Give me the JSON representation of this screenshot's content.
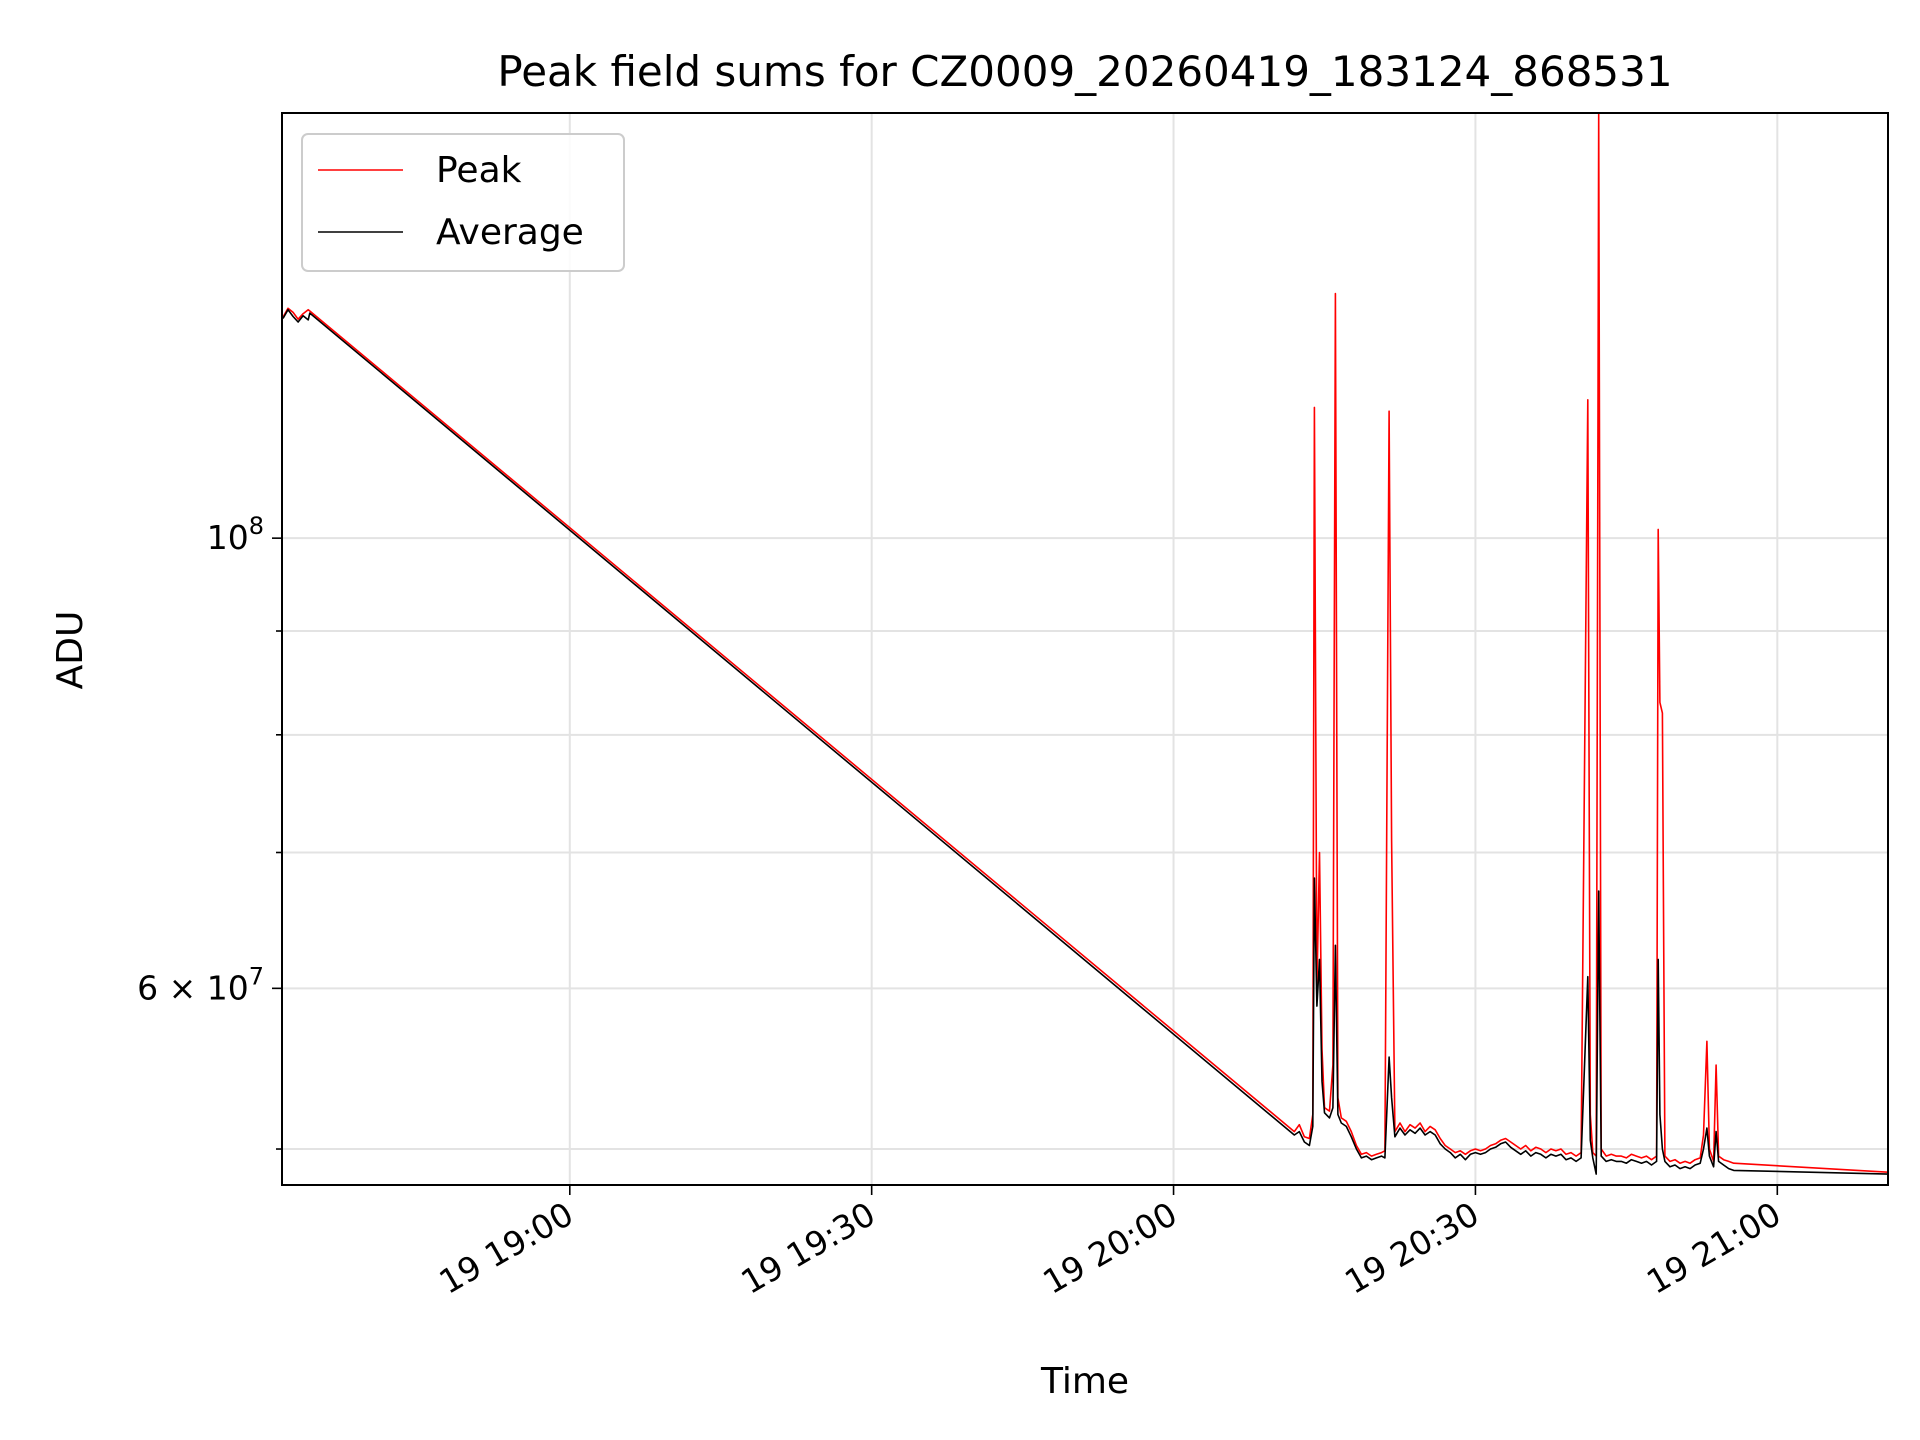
{
  "chart_data": {
    "type": "line",
    "title": "Peak field sums for CZ0009_20260419_183124_868531",
    "xlabel": "Time",
    "ylabel": "ADU",
    "xscale": "time",
    "yscale": "log",
    "grid": true,
    "legend_placement": "top-left",
    "xlim": [
      "2026-04-19 18:31:24",
      "2026-04-19 21:11:00"
    ],
    "ylim": [
      48000000,
      162000000
    ],
    "x_ticks": [
      {
        "label": "19 19:00",
        "value": "2026-04-19 19:00:00"
      },
      {
        "label": "19 19:30",
        "value": "2026-04-19 19:30:00"
      },
      {
        "label": "19 20:00",
        "value": "2026-04-19 20:00:00"
      },
      {
        "label": "19 20:30",
        "value": "2026-04-19 20:30:00"
      },
      {
        "label": "19 21:00",
        "value": "2026-04-19 21:00:00"
      }
    ],
    "y_ticks": [
      {
        "value": 100000000,
        "label_base": "10",
        "label_exp": "8",
        "label_prefix": ""
      },
      {
        "value": 60000000,
        "label_base": "10",
        "label_exp": "7",
        "label_prefix": "6 × "
      }
    ],
    "y_minor_ticks": [
      50000000,
      70000000,
      80000000,
      90000000
    ],
    "series": [
      {
        "name": "Peak",
        "color": "#ff0000",
        "points": [
          [
            "2026-04-19 18:31:30",
            128500000
          ],
          [
            "2026-04-19 18:32:00",
            129800000
          ],
          [
            "2026-04-19 18:32:30",
            129200000
          ],
          [
            "2026-04-19 18:33:00",
            128200000
          ],
          [
            "2026-04-19 18:33:30",
            129000000
          ],
          [
            "2026-04-19 18:34:00",
            129600000
          ],
          [
            "2026-04-19 18:34:10",
            129400000
          ],
          [
            "2026-04-19 20:12:00",
            51000000
          ],
          [
            "2026-04-19 20:12:30",
            51400000
          ],
          [
            "2026-04-19 20:13:00",
            50700000
          ],
          [
            "2026-04-19 20:13:30",
            50600000
          ],
          [
            "2026-04-19 20:13:50",
            52000000
          ],
          [
            "2026-04-19 20:14:00",
            116000000
          ],
          [
            "2026-04-19 20:14:15",
            60000000
          ],
          [
            "2026-04-19 20:14:30",
            70000000
          ],
          [
            "2026-04-19 20:14:45",
            56000000
          ],
          [
            "2026-04-19 20:15:00",
            52400000
          ],
          [
            "2026-04-19 20:15:30",
            52200000
          ],
          [
            "2026-04-19 20:15:50",
            55000000
          ],
          [
            "2026-04-19 20:16:05",
            132000000
          ],
          [
            "2026-04-19 20:16:20",
            53000000
          ],
          [
            "2026-04-19 20:16:40",
            51800000
          ],
          [
            "2026-04-19 20:17:10",
            51600000
          ],
          [
            "2026-04-19 20:17:40",
            51000000
          ],
          [
            "2026-04-19 20:18:10",
            50200000
          ],
          [
            "2026-04-19 20:18:40",
            49700000
          ],
          [
            "2026-04-19 20:19:10",
            49800000
          ],
          [
            "2026-04-19 20:19:40",
            49600000
          ],
          [
            "2026-04-19 20:20:10",
            49700000
          ],
          [
            "2026-04-19 20:20:40",
            49800000
          ],
          [
            "2026-04-19 20:21:00",
            49900000
          ],
          [
            "2026-04-19 20:21:25",
            115500000
          ],
          [
            "2026-04-19 20:21:40",
            71000000
          ],
          [
            "2026-04-19 20:22:00",
            51000000
          ],
          [
            "2026-04-19 20:22:30",
            51500000
          ],
          [
            "2026-04-19 20:23:00",
            51000000
          ],
          [
            "2026-04-19 20:23:30",
            51400000
          ],
          [
            "2026-04-19 20:24:00",
            51200000
          ],
          [
            "2026-04-19 20:24:30",
            51500000
          ],
          [
            "2026-04-19 20:25:00",
            51000000
          ],
          [
            "2026-04-19 20:25:30",
            51300000
          ],
          [
            "2026-04-19 20:26:00",
            51100000
          ],
          [
            "2026-04-19 20:26:30",
            50600000
          ],
          [
            "2026-04-19 20:27:00",
            50200000
          ],
          [
            "2026-04-19 20:27:30",
            50000000
          ],
          [
            "2026-04-19 20:28:00",
            49800000
          ],
          [
            "2026-04-19 20:28:30",
            49900000
          ],
          [
            "2026-04-19 20:29:00",
            49700000
          ],
          [
            "2026-04-19 20:29:30",
            49900000
          ],
          [
            "2026-04-19 20:30:00",
            50000000
          ],
          [
            "2026-04-19 20:30:30",
            49900000
          ],
          [
            "2026-04-19 20:31:00",
            50000000
          ],
          [
            "2026-04-19 20:31:30",
            50200000
          ],
          [
            "2026-04-19 20:32:00",
            50300000
          ],
          [
            "2026-04-19 20:32:30",
            50500000
          ],
          [
            "2026-04-19 20:33:00",
            50600000
          ],
          [
            "2026-04-19 20:33:30",
            50400000
          ],
          [
            "2026-04-19 20:34:00",
            50200000
          ],
          [
            "2026-04-19 20:34:30",
            50000000
          ],
          [
            "2026-04-19 20:35:00",
            50200000
          ],
          [
            "2026-04-19 20:35:30",
            49900000
          ],
          [
            "2026-04-19 20:36:00",
            50100000
          ],
          [
            "2026-04-19 20:36:30",
            50000000
          ],
          [
            "2026-04-19 20:37:00",
            49800000
          ],
          [
            "2026-04-19 20:37:30",
            50000000
          ],
          [
            "2026-04-19 20:38:00",
            49900000
          ],
          [
            "2026-04-19 20:38:30",
            50000000
          ],
          [
            "2026-04-19 20:39:00",
            49700000
          ],
          [
            "2026-04-19 20:39:30",
            49800000
          ],
          [
            "2026-04-19 20:40:00",
            49600000
          ],
          [
            "2026-04-19 20:40:30",
            49800000
          ],
          [
            "2026-04-19 20:41:10",
            117000000
          ],
          [
            "2026-04-19 20:41:25",
            52000000
          ],
          [
            "2026-04-19 20:41:40",
            49800000
          ],
          [
            "2026-04-19 20:42:00",
            49600000
          ],
          [
            "2026-04-19 20:42:15",
            162000000
          ],
          [
            "2026-04-19 20:42:30",
            50000000
          ],
          [
            "2026-04-19 20:43:00",
            49600000
          ],
          [
            "2026-04-19 20:43:30",
            49700000
          ],
          [
            "2026-04-19 20:44:00",
            49600000
          ],
          [
            "2026-04-19 20:44:30",
            49600000
          ],
          [
            "2026-04-19 20:45:00",
            49500000
          ],
          [
            "2026-04-19 20:45:30",
            49700000
          ],
          [
            "2026-04-19 20:46:00",
            49600000
          ],
          [
            "2026-04-19 20:46:30",
            49500000
          ],
          [
            "2026-04-19 20:47:00",
            49600000
          ],
          [
            "2026-04-19 20:47:30",
            49400000
          ],
          [
            "2026-04-19 20:48:00",
            49600000
          ],
          [
            "2026-04-19 20:48:10",
            101000000
          ],
          [
            "2026-04-19 20:48:20",
            83000000
          ],
          [
            "2026-04-19 20:48:35",
            82000000
          ],
          [
            "2026-04-19 20:48:50",
            49600000
          ],
          [
            "2026-04-19 20:49:20",
            49300000
          ],
          [
            "2026-04-19 20:49:50",
            49400000
          ],
          [
            "2026-04-19 20:50:20",
            49200000
          ],
          [
            "2026-04-19 20:50:50",
            49300000
          ],
          [
            "2026-04-19 20:51:20",
            49200000
          ],
          [
            "2026-04-19 20:51:50",
            49400000
          ],
          [
            "2026-04-19 20:52:20",
            49500000
          ],
          [
            "2026-04-19 20:52:40",
            50800000
          ],
          [
            "2026-04-19 20:53:00",
            56500000
          ],
          [
            "2026-04-19 20:53:15",
            50000000
          ],
          [
            "2026-04-19 20:53:40",
            49300000
          ],
          [
            "2026-04-19 20:53:55",
            55000000
          ],
          [
            "2026-04-19 20:54:10",
            49600000
          ],
          [
            "2026-04-19 20:54:40",
            49400000
          ],
          [
            "2026-04-19 20:55:10",
            49300000
          ],
          [
            "2026-04-19 20:55:40",
            49200000
          ],
          [
            "2026-04-19 21:11:00",
            48700000
          ]
        ]
      },
      {
        "name": "Average",
        "color": "#000000",
        "points": [
          [
            "2026-04-19 18:31:30",
            128300000
          ],
          [
            "2026-04-19 18:32:00",
            129600000
          ],
          [
            "2026-04-19 18:32:30",
            128600000
          ],
          [
            "2026-04-19 18:33:00",
            127800000
          ],
          [
            "2026-04-19 18:33:30",
            128700000
          ],
          [
            "2026-04-19 18:34:00",
            128100000
          ],
          [
            "2026-04-19 18:34:10",
            129100000
          ],
          [
            "2026-04-19 20:12:00",
            50800000
          ],
          [
            "2026-04-19 20:12:30",
            51000000
          ],
          [
            "2026-04-19 20:13:00",
            50400000
          ],
          [
            "2026-04-19 20:13:30",
            50200000
          ],
          [
            "2026-04-19 20:13:50",
            51300000
          ],
          [
            "2026-04-19 20:14:00",
            68000000
          ],
          [
            "2026-04-19 20:14:15",
            58800000
          ],
          [
            "2026-04-19 20:14:30",
            62000000
          ],
          [
            "2026-04-19 20:14:45",
            54000000
          ],
          [
            "2026-04-19 20:15:00",
            52100000
          ],
          [
            "2026-04-19 20:15:30",
            51800000
          ],
          [
            "2026-04-19 20:15:50",
            52400000
          ],
          [
            "2026-04-19 20:16:05",
            63000000
          ],
          [
            "2026-04-19 20:16:20",
            52000000
          ],
          [
            "2026-04-19 20:16:40",
            51500000
          ],
          [
            "2026-04-19 20:17:10",
            51300000
          ],
          [
            "2026-04-19 20:17:40",
            50700000
          ],
          [
            "2026-04-19 20:18:10",
            50000000
          ],
          [
            "2026-04-19 20:18:40",
            49500000
          ],
          [
            "2026-04-19 20:19:10",
            49600000
          ],
          [
            "2026-04-19 20:19:40",
            49400000
          ],
          [
            "2026-04-19 20:20:10",
            49500000
          ],
          [
            "2026-04-19 20:20:40",
            49600000
          ],
          [
            "2026-04-19 20:21:00",
            49500000
          ],
          [
            "2026-04-19 20:21:25",
            55500000
          ],
          [
            "2026-04-19 20:21:40",
            53000000
          ],
          [
            "2026-04-19 20:22:00",
            50700000
          ],
          [
            "2026-04-19 20:22:30",
            51200000
          ],
          [
            "2026-04-19 20:23:00",
            50800000
          ],
          [
            "2026-04-19 20:23:30",
            51100000
          ],
          [
            "2026-04-19 20:24:00",
            50900000
          ],
          [
            "2026-04-19 20:24:30",
            51200000
          ],
          [
            "2026-04-19 20:25:00",
            50800000
          ],
          [
            "2026-04-19 20:25:30",
            51000000
          ],
          [
            "2026-04-19 20:26:00",
            50800000
          ],
          [
            "2026-04-19 20:26:30",
            50300000
          ],
          [
            "2026-04-19 20:27:00",
            50000000
          ],
          [
            "2026-04-19 20:27:30",
            49800000
          ],
          [
            "2026-04-19 20:28:00",
            49500000
          ],
          [
            "2026-04-19 20:28:30",
            49700000
          ],
          [
            "2026-04-19 20:29:00",
            49400000
          ],
          [
            "2026-04-19 20:29:30",
            49700000
          ],
          [
            "2026-04-19 20:30:00",
            49800000
          ],
          [
            "2026-04-19 20:30:30",
            49700000
          ],
          [
            "2026-04-19 20:31:00",
            49800000
          ],
          [
            "2026-04-19 20:31:30",
            50000000
          ],
          [
            "2026-04-19 20:32:00",
            50100000
          ],
          [
            "2026-04-19 20:32:30",
            50300000
          ],
          [
            "2026-04-19 20:33:00",
            50400000
          ],
          [
            "2026-04-19 20:33:30",
            50100000
          ],
          [
            "2026-04-19 20:34:00",
            49900000
          ],
          [
            "2026-04-19 20:34:30",
            49700000
          ],
          [
            "2026-04-19 20:35:00",
            49900000
          ],
          [
            "2026-04-19 20:35:30",
            49600000
          ],
          [
            "2026-04-19 20:36:00",
            49800000
          ],
          [
            "2026-04-19 20:36:30",
            49700000
          ],
          [
            "2026-04-19 20:37:00",
            49500000
          ],
          [
            "2026-04-19 20:37:30",
            49700000
          ],
          [
            "2026-04-19 20:38:00",
            49600000
          ],
          [
            "2026-04-19 20:38:30",
            49700000
          ],
          [
            "2026-04-19 20:39:00",
            49400000
          ],
          [
            "2026-04-19 20:39:30",
            49500000
          ],
          [
            "2026-04-19 20:40:00",
            49300000
          ],
          [
            "2026-04-19 20:40:30",
            49500000
          ],
          [
            "2026-04-19 20:41:10",
            60800000
          ],
          [
            "2026-04-19 20:41:25",
            50500000
          ],
          [
            "2026-04-19 20:41:40",
            49500000
          ],
          [
            "2026-04-19 20:42:00",
            48600000
          ],
          [
            "2026-04-19 20:42:15",
            67000000
          ],
          [
            "2026-04-19 20:42:30",
            49600000
          ],
          [
            "2026-04-19 20:43:00",
            49300000
          ],
          [
            "2026-04-19 20:43:30",
            49400000
          ],
          [
            "2026-04-19 20:44:00",
            49300000
          ],
          [
            "2026-04-19 20:44:30",
            49300000
          ],
          [
            "2026-04-19 20:45:00",
            49200000
          ],
          [
            "2026-04-19 20:45:30",
            49400000
          ],
          [
            "2026-04-19 20:46:00",
            49300000
          ],
          [
            "2026-04-19 20:46:30",
            49200000
          ],
          [
            "2026-04-19 20:47:00",
            49300000
          ],
          [
            "2026-04-19 20:47:30",
            49100000
          ],
          [
            "2026-04-19 20:48:00",
            49300000
          ],
          [
            "2026-04-19 20:48:10",
            62000000
          ],
          [
            "2026-04-19 20:48:20",
            52000000
          ],
          [
            "2026-04-19 20:48:35",
            50000000
          ],
          [
            "2026-04-19 20:48:50",
            49300000
          ],
          [
            "2026-04-19 20:49:20",
            49000000
          ],
          [
            "2026-04-19 20:49:50",
            49100000
          ],
          [
            "2026-04-19 20:50:20",
            48900000
          ],
          [
            "2026-04-19 20:50:50",
            49000000
          ],
          [
            "2026-04-19 20:51:20",
            48900000
          ],
          [
            "2026-04-19 20:51:50",
            49100000
          ],
          [
            "2026-04-19 20:52:20",
            49200000
          ],
          [
            "2026-04-19 20:52:40",
            50000000
          ],
          [
            "2026-04-19 20:53:00",
            51200000
          ],
          [
            "2026-04-19 20:53:15",
            49600000
          ],
          [
            "2026-04-19 20:53:40",
            49000000
          ],
          [
            "2026-04-19 20:53:55",
            51000000
          ],
          [
            "2026-04-19 20:54:10",
            49300000
          ],
          [
            "2026-04-19 20:54:40",
            49100000
          ],
          [
            "2026-04-19 20:55:10",
            48900000
          ],
          [
            "2026-04-19 20:55:40",
            48800000
          ],
          [
            "2026-04-19 21:11:00",
            48600000
          ]
        ]
      }
    ]
  }
}
